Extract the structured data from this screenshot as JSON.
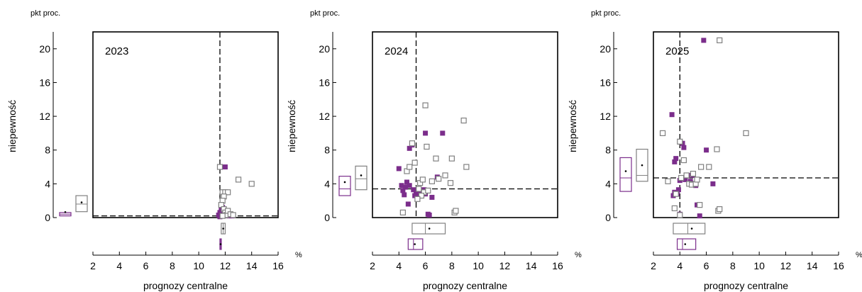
{
  "chart_data": [
    {
      "type": "scatter",
      "year_label": "2023",
      "unit_label": "pkt proc.",
      "x_unit": "%",
      "xlabel": "prognozy  centralne",
      "ylabel": "niepewność",
      "xlim": [
        2,
        16
      ],
      "ylim": [
        0,
        22
      ],
      "x_ticks": [
        2,
        4,
        6,
        8,
        10,
        12,
        14,
        16
      ],
      "y_ticks": [
        0,
        4,
        8,
        12,
        16,
        20
      ],
      "ref_x": 11.6,
      "ref_y": 0.2,
      "colors": {
        "filled": "#7b2d8b",
        "hollow": "#808080"
      },
      "series": [
        {
          "kind": "filled",
          "points": [
            [
              11.5,
              0.3
            ],
            [
              11.6,
              0.6
            ],
            [
              11.7,
              0.9
            ],
            [
              11.8,
              1.2
            ],
            [
              11.9,
              0.5
            ],
            [
              12.0,
              6.0
            ],
            [
              12.1,
              0.4
            ],
            [
              12.3,
              0.2
            ],
            [
              11.6,
              0.1
            ],
            [
              12.5,
              0.2
            ],
            [
              11.7,
              0.4
            ]
          ]
        },
        {
          "kind": "hollow",
          "points": [
            [
              11.6,
              6.0
            ],
            [
              13.0,
              4.5
            ],
            [
              14.0,
              4.0
            ],
            [
              11.8,
              3.0
            ],
            [
              12.0,
              3.0
            ],
            [
              12.2,
              3.0
            ],
            [
              11.9,
              2.5
            ],
            [
              11.8,
              2.0
            ],
            [
              11.7,
              1.5
            ],
            [
              11.9,
              1.0
            ],
            [
              12.0,
              0.6
            ],
            [
              12.1,
              0.3
            ],
            [
              12.2,
              0.8
            ],
            [
              12.4,
              0.4
            ],
            [
              11.8,
              0.2
            ],
            [
              12.6,
              0.3
            ]
          ]
        }
      ],
      "y_boxes": [
        {
          "kind": "filled",
          "q1": 0.2,
          "median": 0.4,
          "q3": 0.6,
          "mean": 0.65
        },
        {
          "kind": "hollow",
          "q1": 0.7,
          "median": 1.6,
          "q3": 2.6,
          "mean": 1.8
        }
      ],
      "x_boxes": [
        {
          "kind": "hollow",
          "q1": 11.7,
          "median": 11.85,
          "q3": 12.0,
          "mean": 11.85
        },
        {
          "kind": "filled",
          "q1": 11.6,
          "median": 11.65,
          "q3": 11.7,
          "mean": 11.65
        }
      ]
    },
    {
      "type": "scatter",
      "year_label": "2024",
      "unit_label": "pkt proc.",
      "x_unit": "%",
      "xlabel": "prognozy  centralne",
      "ylabel": "niepewność",
      "xlim": [
        2,
        16
      ],
      "ylim": [
        0,
        22
      ],
      "x_ticks": [
        2,
        4,
        6,
        8,
        10,
        12,
        14,
        16
      ],
      "y_ticks": [
        0,
        4,
        8,
        12,
        16,
        20
      ],
      "ref_x": 5.3,
      "ref_y": 3.4,
      "colors": {
        "filled": "#7b2d8b",
        "hollow": "#808080"
      },
      "series": [
        {
          "kind": "filled",
          "points": [
            [
              4.0,
              5.8
            ],
            [
              4.2,
              3.8
            ],
            [
              4.3,
              3.2
            ],
            [
              4.4,
              2.7
            ],
            [
              4.5,
              3.6
            ],
            [
              4.6,
              4.2
            ],
            [
              4.7,
              1.6
            ],
            [
              4.8,
              3.8
            ],
            [
              4.8,
              8.2
            ],
            [
              5.0,
              8.6
            ],
            [
              5.1,
              3.3
            ],
            [
              5.2,
              2.6
            ],
            [
              5.3,
              2.9
            ],
            [
              5.4,
              3.1
            ],
            [
              5.5,
              2.8
            ],
            [
              5.6,
              2.7
            ],
            [
              5.8,
              3.1
            ],
            [
              6.0,
              10.0
            ],
            [
              6.0,
              2.8
            ],
            [
              6.2,
              0.4
            ],
            [
              6.3,
              0.3
            ],
            [
              6.5,
              2.4
            ],
            [
              6.9,
              4.8
            ],
            [
              7.3,
              10.0
            ],
            [
              5.9,
              3.3
            ]
          ]
        },
        {
          "kind": "hollow",
          "points": [
            [
              4.3,
              0.6
            ],
            [
              4.6,
              5.5
            ],
            [
              4.8,
              6.0
            ],
            [
              5.0,
              8.8
            ],
            [
              5.2,
              6.5
            ],
            [
              5.5,
              3.4
            ],
            [
              5.6,
              4.1
            ],
            [
              5.8,
              4.5
            ],
            [
              5.9,
              3.0
            ],
            [
              6.0,
              13.3
            ],
            [
              6.1,
              8.4
            ],
            [
              6.2,
              3.2
            ],
            [
              6.5,
              4.3
            ],
            [
              6.8,
              7.0
            ],
            [
              7.0,
              4.6
            ],
            [
              7.5,
              5.0
            ],
            [
              7.9,
              4.1
            ],
            [
              8.0,
              7.0
            ],
            [
              8.2,
              0.6
            ],
            [
              8.3,
              0.8
            ],
            [
              8.9,
              11.5
            ],
            [
              9.1,
              6.0
            ],
            [
              5.7,
              2.6
            ],
            [
              5.4,
              2.2
            ]
          ]
        }
      ],
      "y_boxes": [
        {
          "kind": "filled",
          "q1": 2.6,
          "median": 3.4,
          "q3": 4.9,
          "mean": 4.2
        },
        {
          "kind": "hollow",
          "q1": 3.3,
          "median": 4.6,
          "q3": 6.1,
          "mean": 5.0
        }
      ],
      "x_boxes": [
        {
          "kind": "hollow",
          "q1": 5.0,
          "median": 6.0,
          "q3": 7.5,
          "mean": 6.3
        },
        {
          "kind": "filled",
          "q1": 4.7,
          "median": 5.1,
          "q3": 5.8,
          "mean": 5.2
        }
      ]
    },
    {
      "type": "scatter",
      "year_label": "2025",
      "unit_label": "pkt proc.",
      "x_unit": "%",
      "xlabel": "prognozy  centralne",
      "ylabel": "niepewność",
      "xlim": [
        2,
        16
      ],
      "ylim": [
        0,
        22
      ],
      "x_ticks": [
        2,
        4,
        6,
        8,
        10,
        12,
        14,
        16
      ],
      "y_ticks": [
        0,
        4,
        8,
        12,
        16,
        20
      ],
      "ref_x": 4.0,
      "ref_y": 4.7,
      "colors": {
        "filled": "#7b2d8b",
        "hollow": "#808080"
      },
      "series": [
        {
          "kind": "filled",
          "points": [
            [
              3.4,
              12.2
            ],
            [
              3.5,
              2.6
            ],
            [
              3.6,
              3.0
            ],
            [
              3.6,
              6.6
            ],
            [
              3.7,
              7.0
            ],
            [
              3.8,
              2.8
            ],
            [
              3.9,
              3.3
            ],
            [
              4.0,
              4.4
            ],
            [
              4.0,
              0.4
            ],
            [
              4.2,
              8.8
            ],
            [
              4.3,
              8.3
            ],
            [
              4.4,
              4.5
            ],
            [
              4.6,
              5.0
            ],
            [
              4.8,
              4.3
            ],
            [
              5.0,
              5.0
            ],
            [
              5.2,
              3.8
            ],
            [
              5.3,
              1.5
            ],
            [
              5.5,
              0.2
            ],
            [
              5.8,
              21.0
            ],
            [
              6.0,
              8.0
            ],
            [
              6.5,
              4.0
            ]
          ]
        },
        {
          "kind": "hollow",
          "points": [
            [
              2.7,
              10.0
            ],
            [
              3.1,
              4.3
            ],
            [
              3.6,
              1.1
            ],
            [
              3.7,
              2.8
            ],
            [
              4.0,
              9.0
            ],
            [
              4.1,
              4.7
            ],
            [
              4.3,
              6.8
            ],
            [
              4.5,
              5.0
            ],
            [
              4.7,
              4.0
            ],
            [
              4.9,
              3.9
            ],
            [
              5.0,
              5.2
            ],
            [
              5.2,
              4.0
            ],
            [
              5.5,
              1.5
            ],
            [
              5.6,
              6.0
            ],
            [
              6.2,
              6.0
            ],
            [
              6.8,
              8.1
            ],
            [
              7.0,
              21.0
            ],
            [
              6.9,
              0.8
            ],
            [
              7.0,
              1.0
            ],
            [
              9.0,
              10.0
            ],
            [
              4.0,
              0.3
            ],
            [
              5.3,
              4.5
            ]
          ]
        }
      ],
      "y_boxes": [
        {
          "kind": "filled",
          "q1": 3.1,
          "median": 4.7,
          "q3": 7.1,
          "mean": 5.5
        },
        {
          "kind": "hollow",
          "q1": 4.3,
          "median": 5.0,
          "q3": 8.1,
          "mean": 6.2
        }
      ],
      "x_boxes": [
        {
          "kind": "hollow",
          "q1": 3.5,
          "median": 4.6,
          "q3": 5.9,
          "mean": 4.9
        },
        {
          "kind": "filled",
          "q1": 3.8,
          "median": 4.2,
          "q3": 5.2,
          "mean": 4.4
        }
      ]
    }
  ]
}
